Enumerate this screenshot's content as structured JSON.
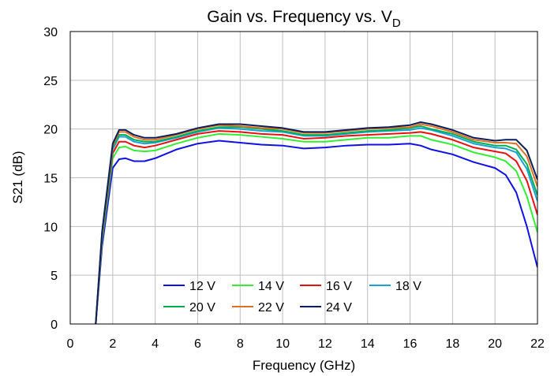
{
  "chart_data": {
    "type": "line",
    "title": "Gain vs. Frequency vs. V",
    "title_subscript": "D",
    "xlabel": "Frequency (GHz)",
    "ylabel": "S21 (dB)",
    "x": [
      1.2,
      1.5,
      2,
      2.3,
      2.6,
      3,
      3.5,
      4,
      5,
      6,
      7,
      8,
      9,
      10,
      11,
      12,
      13,
      14,
      15,
      16,
      16.5,
      17,
      18,
      19,
      20,
      20.5,
      21,
      21.5,
      22
    ],
    "series": [
      {
        "name": "12 V",
        "color": "#1010e8",
        "values": [
          0,
          8,
          16,
          16.9,
          17,
          16.7,
          16.7,
          17,
          17.9,
          18.5,
          18.8,
          18.6,
          18.4,
          18.3,
          18.0,
          18.1,
          18.3,
          18.4,
          18.4,
          18.5,
          18.3,
          17.9,
          17.4,
          16.6,
          16.0,
          15.3,
          13.5,
          10,
          5.8
        ]
      },
      {
        "name": "14 V",
        "color": "#33ee33",
        "values": [
          0,
          8.6,
          17.0,
          18.1,
          18.2,
          17.8,
          17.7,
          17.8,
          18.5,
          19.1,
          19.5,
          19.4,
          19.2,
          19.0,
          18.7,
          18.7,
          18.9,
          19.1,
          19.1,
          19.3,
          19.3,
          18.9,
          18.4,
          17.6,
          17.1,
          16.7,
          15.7,
          13.1,
          9.4
        ]
      },
      {
        "name": "16 V",
        "color": "#e81010",
        "values": [
          0,
          8.9,
          17.5,
          18.7,
          18.7,
          18.3,
          18.1,
          18.3,
          18.9,
          19.5,
          19.8,
          19.7,
          19.5,
          19.4,
          19.0,
          19.1,
          19.3,
          19.4,
          19.5,
          19.6,
          19.7,
          19.5,
          18.9,
          18.1,
          17.7,
          17.5,
          16.7,
          14.7,
          11.2
        ]
      },
      {
        "name": "18 V",
        "color": "#1ca0d8",
        "values": [
          0,
          9.1,
          17.9,
          19.2,
          19.2,
          18.7,
          18.5,
          18.6,
          19.1,
          19.7,
          20.1,
          20.0,
          19.8,
          19.7,
          19.3,
          19.3,
          19.5,
          19.7,
          19.8,
          19.9,
          20.1,
          19.9,
          19.3,
          18.5,
          18.1,
          18.0,
          17.6,
          15.9,
          12.6
        ]
      },
      {
        "name": "20 V",
        "color": "#00b050",
        "values": [
          0,
          9.2,
          18.1,
          19.4,
          19.4,
          18.9,
          18.7,
          18.7,
          19.2,
          19.8,
          20.2,
          20.2,
          20.0,
          19.8,
          19.4,
          19.4,
          19.6,
          19.8,
          19.9,
          20.1,
          20.3,
          20.0,
          19.5,
          18.7,
          18.3,
          18.3,
          17.9,
          16.4,
          13.2
        ]
      },
      {
        "name": "22 V",
        "color": "#e07020",
        "values": [
          0,
          9.4,
          18.3,
          19.7,
          19.7,
          19.2,
          18.9,
          18.9,
          19.4,
          20.0,
          20.4,
          20.3,
          20.1,
          20.0,
          19.6,
          19.6,
          19.8,
          20.0,
          20.1,
          20.2,
          20.5,
          20.3,
          19.7,
          18.9,
          18.6,
          18.6,
          18.5,
          17.2,
          14.1
        ]
      },
      {
        "name": "24 V",
        "color": "#0a1f5c",
        "values": [
          0,
          9.5,
          18.5,
          19.9,
          19.9,
          19.4,
          19.1,
          19.1,
          19.5,
          20.1,
          20.5,
          20.5,
          20.3,
          20.1,
          19.7,
          19.7,
          19.9,
          20.1,
          20.2,
          20.4,
          20.7,
          20.5,
          19.9,
          19.1,
          18.8,
          18.9,
          18.9,
          17.8,
          14.8
        ]
      }
    ],
    "xlim": [
      0,
      22
    ],
    "xticks": [
      0,
      2,
      4,
      6,
      8,
      10,
      12,
      14,
      16,
      18,
      20,
      22
    ],
    "ylim": [
      0,
      30
    ],
    "yticks": [
      0,
      5,
      10,
      15,
      20,
      25,
      30
    ],
    "grid": true,
    "legend": "bottom"
  }
}
